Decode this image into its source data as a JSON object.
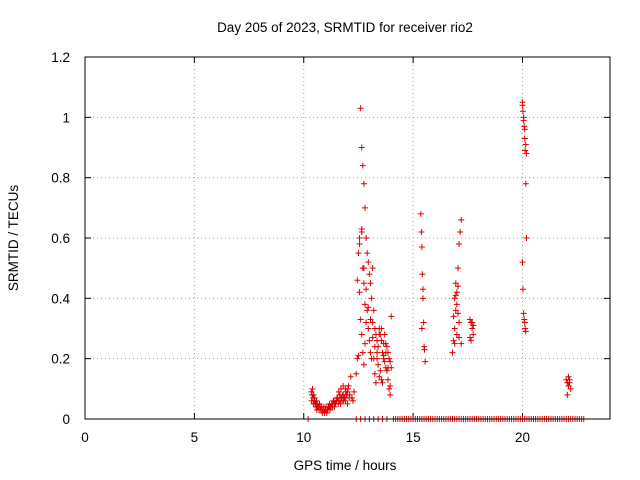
{
  "chart_data": {
    "type": "scatter",
    "title": "Day 205 of 2023, SRMTID for receiver rio2",
    "xlabel": "GPS time / hours",
    "ylabel": "SRMTID / TECUs",
    "xlim": [
      0,
      24
    ],
    "ylim": [
      0,
      1.2
    ],
    "x_ticks": [
      0,
      5,
      10,
      15,
      20
    ],
    "x_tick_labels": [
      "0",
      "5",
      "10",
      "15",
      "20"
    ],
    "y_ticks": [
      0,
      0.2,
      0.4,
      0.6,
      0.8,
      1.0,
      1.2
    ],
    "y_tick_labels": [
      "0",
      "0.2",
      "0.4",
      "0.6",
      "0.8",
      "1",
      "1.2"
    ],
    "grid": true,
    "legend": "none",
    "marker": "plus",
    "marker_color": "#e00000",
    "series": [
      {
        "name": "SRMTID",
        "x": [
          10.2,
          10.35,
          10.4,
          10.45,
          10.5,
          10.55,
          10.6,
          10.65,
          10.7,
          10.75,
          10.8,
          10.85,
          10.9,
          10.95,
          11.0,
          11.05,
          11.1,
          11.15,
          11.2,
          11.25,
          11.3,
          11.35,
          11.4,
          11.45,
          11.5,
          11.55,
          11.6,
          11.65,
          11.7,
          11.75,
          11.8,
          11.85,
          11.9,
          11.95,
          12.0,
          12.05,
          12.1,
          12.15,
          12.2,
          12.25,
          12.3,
          10.38,
          10.42,
          10.48,
          10.52,
          10.58,
          10.62,
          10.68,
          10.72,
          10.78,
          10.82,
          10.88,
          10.92,
          10.98,
          11.02,
          11.08,
          11.12,
          11.18,
          11.22,
          11.28,
          11.32,
          11.38,
          11.42,
          11.48,
          11.52,
          11.58,
          11.62,
          11.68,
          11.72,
          11.78,
          11.82,
          11.88,
          11.92,
          11.98,
          12.02,
          12.08,
          10.36,
          10.44,
          10.5,
          10.56,
          10.6,
          11.6,
          11.7,
          11.8,
          11.9,
          12.0,
          12.4,
          12.45,
          12.5,
          12.5,
          12.55,
          12.55,
          12.6,
          12.6,
          12.65,
          12.65,
          12.65,
          12.7,
          12.7,
          12.7,
          12.75,
          12.75,
          12.75,
          12.8,
          12.8,
          12.8,
          12.85,
          12.85,
          12.9,
          12.9,
          12.95,
          12.95,
          13.0,
          13.0,
          13.05,
          13.05,
          13.1,
          13.1,
          13.15,
          13.15,
          13.2,
          13.2,
          13.25,
          13.25,
          13.3,
          13.3,
          13.35,
          13.35,
          13.4,
          13.4,
          13.45,
          13.45,
          13.5,
          13.5,
          13.55,
          13.55,
          13.6,
          13.6,
          13.65,
          13.65,
          13.7,
          13.7,
          13.75,
          13.75,
          13.8,
          13.8,
          13.85,
          13.85,
          13.9,
          13.9,
          13.95,
          13.95,
          14.0,
          14.0,
          12.45,
          12.55,
          12.65,
          12.75,
          12.85,
          12.95,
          13.05,
          13.15,
          13.25,
          13.35,
          13.45,
          13.55,
          13.65,
          13.75,
          13.85,
          13.95,
          15.35,
          15.38,
          15.4,
          15.42,
          15.45,
          15.48,
          15.5,
          15.52,
          15.55,
          15.4,
          15.45,
          16.8,
          16.85,
          16.9,
          16.95,
          17.0,
          17.05,
          17.1,
          17.15,
          17.2,
          16.85,
          16.9,
          16.95,
          17.0,
          17.05,
          17.1,
          16.9,
          17.0,
          17.1,
          17.2,
          16.95,
          17.05,
          17.6,
          17.65,
          17.7,
          17.75,
          17.6,
          17.65,
          17.7,
          17.75,
          20.0,
          20.02,
          20.05,
          20.08,
          20.1,
          20.12,
          20.15,
          20.18,
          20.0,
          20.02,
          20.05,
          20.08,
          20.1,
          20.12,
          20.15,
          20.0,
          20.05,
          20.1,
          20.15,
          20.18,
          22.0,
          22.05,
          22.1,
          22.15,
          22.2,
          22.05,
          22.1,
          22.15,
          12.4,
          12.6,
          12.8,
          13.0,
          13.2,
          13.4,
          13.6,
          13.8,
          14.2,
          14.4,
          14.6,
          14.8,
          15.0,
          15.2,
          15.4,
          15.6,
          15.8,
          16.0,
          16.2,
          16.4,
          16.6,
          16.8,
          17.0,
          17.2,
          17.4,
          17.6,
          17.8,
          18.0,
          18.2,
          18.4,
          18.6,
          18.8,
          19.0,
          19.2,
          19.4,
          19.6,
          19.8,
          20.0,
          20.2,
          20.4,
          20.6,
          20.8,
          21.0,
          21.2,
          21.4,
          21.6,
          21.8,
          22.0,
          22.2,
          22.4,
          22.6,
          22.8,
          14.1,
          14.3,
          14.5,
          14.7,
          14.9,
          15.1,
          15.3,
          15.5,
          15.7,
          15.9,
          16.1,
          16.3,
          16.5,
          16.7,
          16.9,
          17.1,
          17.3,
          17.5,
          17.7,
          17.9,
          18.1,
          18.3,
          18.5,
          18.7,
          18.9,
          19.1,
          19.3,
          19.5,
          19.7,
          19.9,
          20.1,
          20.3,
          20.5,
          20.7,
          20.9,
          21.1,
          21.3,
          21.5,
          21.7,
          21.9,
          22.1,
          22.3,
          22.5,
          22.7
        ],
        "y": [
          0.0,
          0.09,
          0.1,
          0.08,
          0.06,
          0.05,
          0.04,
          0.04,
          0.03,
          0.04,
          0.03,
          0.02,
          0.03,
          0.02,
          0.03,
          0.02,
          0.03,
          0.04,
          0.03,
          0.04,
          0.05,
          0.06,
          0.04,
          0.05,
          0.06,
          0.07,
          0.06,
          0.08,
          0.07,
          0.06,
          0.08,
          0.07,
          0.1,
          0.08,
          0.09,
          0.11,
          0.08,
          0.14,
          0.07,
          0.06,
          0.09,
          0.08,
          0.07,
          0.06,
          0.05,
          0.06,
          0.05,
          0.04,
          0.05,
          0.03,
          0.04,
          0.03,
          0.04,
          0.03,
          0.04,
          0.03,
          0.04,
          0.05,
          0.04,
          0.05,
          0.04,
          0.06,
          0.05,
          0.06,
          0.07,
          0.05,
          0.06,
          0.05,
          0.07,
          0.08,
          0.06,
          0.07,
          0.09,
          0.08,
          0.1,
          0.07,
          0.06,
          0.05,
          0.07,
          0.04,
          0.03,
          0.09,
          0.1,
          0.11,
          0.06,
          0.05,
          0.15,
          0.2,
          0.21,
          0.55,
          0.42,
          0.6,
          0.33,
          1.03,
          0.9,
          0.62,
          0.28,
          0.84,
          0.5,
          0.22,
          0.78,
          0.45,
          0.18,
          0.7,
          0.38,
          0.25,
          0.6,
          0.32,
          0.55,
          0.36,
          0.52,
          0.3,
          0.48,
          0.26,
          0.45,
          0.22,
          0.4,
          0.2,
          0.5,
          0.32,
          0.36,
          0.2,
          0.3,
          0.15,
          0.28,
          0.12,
          0.26,
          0.22,
          0.24,
          0.18,
          0.3,
          0.14,
          0.28,
          0.16,
          0.26,
          0.13,
          0.22,
          0.12,
          0.21,
          0.2,
          0.28,
          0.19,
          0.25,
          0.17,
          0.24,
          0.16,
          0.22,
          0.13,
          0.2,
          0.1,
          0.19,
          0.08,
          0.34,
          0.17,
          0.46,
          0.58,
          0.63,
          0.5,
          0.43,
          0.37,
          0.33,
          0.27,
          0.24,
          0.2,
          0.28,
          0.3,
          0.25,
          0.22,
          0.17,
          0.11,
          0.68,
          0.62,
          0.57,
          0.48,
          0.4,
          0.32,
          0.24,
          0.23,
          0.19,
          0.3,
          0.43,
          0.22,
          0.26,
          0.3,
          0.36,
          0.42,
          0.5,
          0.58,
          0.62,
          0.66,
          0.34,
          0.4,
          0.45,
          0.38,
          0.35,
          0.32,
          0.25,
          0.28,
          0.27,
          0.25,
          0.41,
          0.44,
          0.33,
          0.32,
          0.3,
          0.28,
          0.27,
          0.26,
          0.32,
          0.31,
          1.05,
          1.02,
          0.99,
          0.97,
          0.93,
          0.89,
          0.78,
          0.6,
          0.52,
          0.43,
          0.35,
          0.33,
          0.32,
          0.3,
          0.29,
          1.04,
          1.0,
          0.96,
          0.91,
          0.88,
          0.13,
          0.12,
          0.11,
          0.12,
          0.1,
          0.08,
          0.14,
          0.13,
          0.0,
          0.0,
          0.0,
          0.0,
          0.0,
          0.0,
          0.0,
          0.0,
          0.0,
          0.0,
          0.0,
          0.0,
          0.0,
          0.0,
          0.0,
          0.0,
          0.0,
          0.0,
          0.0,
          0.0,
          0.0,
          0.0,
          0.0,
          0.0,
          0.0,
          0.0,
          0.0,
          0.0,
          0.0,
          0.0,
          0.0,
          0.0,
          0.0,
          0.0,
          0.0,
          0.0,
          0.0,
          0.0,
          0.0,
          0.0,
          0.0,
          0.0,
          0.0,
          0.0,
          0.0,
          0.0,
          0.0,
          0.0,
          0.0,
          0.0,
          0.0,
          0.0,
          0.0,
          0.0,
          0.0,
          0.0,
          0.0,
          0.0,
          0.0,
          0.0,
          0.0,
          0.0,
          0.0,
          0.0,
          0.0,
          0.0,
          0.0,
          0.0,
          0.0,
          0.0,
          0.0,
          0.0,
          0.0,
          0.0,
          0.0,
          0.0,
          0.0,
          0.0,
          0.0,
          0.0,
          0.0,
          0.0,
          0.0,
          0.0,
          0.0,
          0.0,
          0.0,
          0.0,
          0.0,
          0.0,
          0.0,
          0.0,
          0.0,
          0.0,
          0.0,
          0.0
        ]
      }
    ]
  }
}
